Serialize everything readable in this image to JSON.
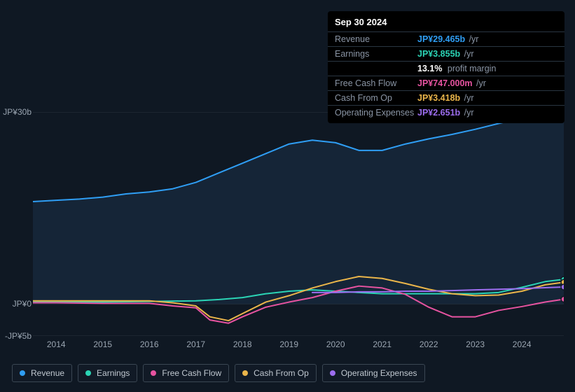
{
  "tooltip": {
    "date": "Sep 30 2024",
    "rows": [
      {
        "label": "Revenue",
        "value": "JP¥29.465b",
        "unit": "/yr",
        "color": "#2f9ef4"
      },
      {
        "label": "Earnings",
        "value": "JP¥3.855b",
        "unit": "/yr",
        "color": "#2bd4b5",
        "extra_value": "13.1%",
        "extra_label": "profit margin"
      },
      {
        "label": "Free Cash Flow",
        "value": "JP¥747.000m",
        "unit": "/yr",
        "color": "#e653a0"
      },
      {
        "label": "Cash From Op",
        "value": "JP¥3.418b",
        "unit": "/yr",
        "color": "#eab54a"
      },
      {
        "label": "Operating Expenses",
        "value": "JP¥2.651b",
        "unit": "/yr",
        "color": "#9d6ef0"
      }
    ]
  },
  "chart": {
    "type": "line-area",
    "background_color": "#0f1823",
    "area_fill_color": "#16273a",
    "grid_color": "#3a4652",
    "x_range": [
      2013.5,
      2024.9
    ],
    "y_range": [
      -5,
      30
    ],
    "y_ticks": [
      {
        "v": 30,
        "label": "JP¥30b"
      },
      {
        "v": 0,
        "label": "JP¥0"
      },
      {
        "v": -5,
        "label": "-JP¥5b"
      }
    ],
    "x_ticks": [
      2014,
      2015,
      2016,
      2017,
      2018,
      2019,
      2020,
      2021,
      2022,
      2023,
      2024
    ],
    "series": [
      {
        "name": "Revenue",
        "color": "#2f9ef4",
        "fill": true,
        "width": 2,
        "data": [
          [
            2013.5,
            16.0
          ],
          [
            2014,
            16.2
          ],
          [
            2014.5,
            16.4
          ],
          [
            2015,
            16.7
          ],
          [
            2015.5,
            17.2
          ],
          [
            2016,
            17.5
          ],
          [
            2016.5,
            18.0
          ],
          [
            2017,
            19.0
          ],
          [
            2017.5,
            20.5
          ],
          [
            2018,
            22.0
          ],
          [
            2018.5,
            23.5
          ],
          [
            2019,
            25.0
          ],
          [
            2019.5,
            25.6
          ],
          [
            2020,
            25.2
          ],
          [
            2020.5,
            24.0
          ],
          [
            2021,
            24.0
          ],
          [
            2021.5,
            25.0
          ],
          [
            2022,
            25.8
          ],
          [
            2022.5,
            26.5
          ],
          [
            2023,
            27.3
          ],
          [
            2023.5,
            28.2
          ],
          [
            2024,
            29.0
          ],
          [
            2024.5,
            29.6
          ],
          [
            2024.9,
            29.5
          ]
        ]
      },
      {
        "name": "Earnings",
        "color": "#2bd4b5",
        "fill": false,
        "width": 2,
        "data": [
          [
            2013.5,
            0.3
          ],
          [
            2014,
            0.3
          ],
          [
            2015,
            0.3
          ],
          [
            2016,
            0.4
          ],
          [
            2017,
            0.5
          ],
          [
            2017.5,
            0.7
          ],
          [
            2018,
            1.0
          ],
          [
            2018.5,
            1.6
          ],
          [
            2019,
            2.0
          ],
          [
            2019.5,
            2.2
          ],
          [
            2020,
            2.0
          ],
          [
            2020.5,
            1.8
          ],
          [
            2021,
            1.6
          ],
          [
            2021.5,
            1.6
          ],
          [
            2022,
            1.6
          ],
          [
            2022.5,
            1.6
          ],
          [
            2023,
            1.6
          ],
          [
            2023.5,
            1.8
          ],
          [
            2024,
            2.6
          ],
          [
            2024.5,
            3.5
          ],
          [
            2024.9,
            3.85
          ]
        ]
      },
      {
        "name": "Free Cash Flow",
        "color": "#e653a0",
        "fill": false,
        "width": 2,
        "data": [
          [
            2013.5,
            0.2
          ],
          [
            2014,
            0.2
          ],
          [
            2015,
            0.1
          ],
          [
            2016,
            0.1
          ],
          [
            2016.5,
            -0.3
          ],
          [
            2017,
            -0.6
          ],
          [
            2017.3,
            -2.5
          ],
          [
            2017.7,
            -3.0
          ],
          [
            2018,
            -2.0
          ],
          [
            2018.5,
            -0.5
          ],
          [
            2019,
            0.3
          ],
          [
            2019.5,
            1.0
          ],
          [
            2020,
            2.0
          ],
          [
            2020.5,
            2.8
          ],
          [
            2021,
            2.5
          ],
          [
            2021.5,
            1.5
          ],
          [
            2022,
            -0.5
          ],
          [
            2022.5,
            -2.0
          ],
          [
            2023,
            -2.0
          ],
          [
            2023.5,
            -1.0
          ],
          [
            2024,
            -0.4
          ],
          [
            2024.5,
            0.3
          ],
          [
            2024.9,
            0.75
          ]
        ]
      },
      {
        "name": "Cash From Op",
        "color": "#eab54a",
        "fill": false,
        "width": 2,
        "data": [
          [
            2013.5,
            0.5
          ],
          [
            2014,
            0.5
          ],
          [
            2015,
            0.5
          ],
          [
            2016,
            0.5
          ],
          [
            2016.5,
            0.2
          ],
          [
            2017,
            -0.3
          ],
          [
            2017.3,
            -2.0
          ],
          [
            2017.7,
            -2.6
          ],
          [
            2018,
            -1.5
          ],
          [
            2018.5,
            0.3
          ],
          [
            2019,
            1.3
          ],
          [
            2019.5,
            2.5
          ],
          [
            2020,
            3.5
          ],
          [
            2020.5,
            4.3
          ],
          [
            2021,
            4.0
          ],
          [
            2021.5,
            3.2
          ],
          [
            2022,
            2.3
          ],
          [
            2022.5,
            1.6
          ],
          [
            2023,
            1.3
          ],
          [
            2023.5,
            1.4
          ],
          [
            2024,
            2.0
          ],
          [
            2024.5,
            3.0
          ],
          [
            2024.9,
            3.4
          ]
        ]
      },
      {
        "name": "Operating Expenses",
        "color": "#9d6ef0",
        "fill": false,
        "width": 2,
        "data": [
          [
            2019.5,
            1.8
          ],
          [
            2020,
            1.8
          ],
          [
            2020.5,
            1.9
          ],
          [
            2021,
            1.9
          ],
          [
            2021.5,
            2.0
          ],
          [
            2022,
            2.0
          ],
          [
            2022.5,
            2.1
          ],
          [
            2023,
            2.2
          ],
          [
            2023.5,
            2.3
          ],
          [
            2024,
            2.4
          ],
          [
            2024.5,
            2.55
          ],
          [
            2024.9,
            2.65
          ]
        ]
      }
    ],
    "end_markers": true
  },
  "legend": [
    {
      "label": "Revenue",
      "color": "#2f9ef4"
    },
    {
      "label": "Earnings",
      "color": "#2bd4b5"
    },
    {
      "label": "Free Cash Flow",
      "color": "#e653a0"
    },
    {
      "label": "Cash From Op",
      "color": "#eab54a"
    },
    {
      "label": "Operating Expenses",
      "color": "#9d6ef0"
    }
  ]
}
